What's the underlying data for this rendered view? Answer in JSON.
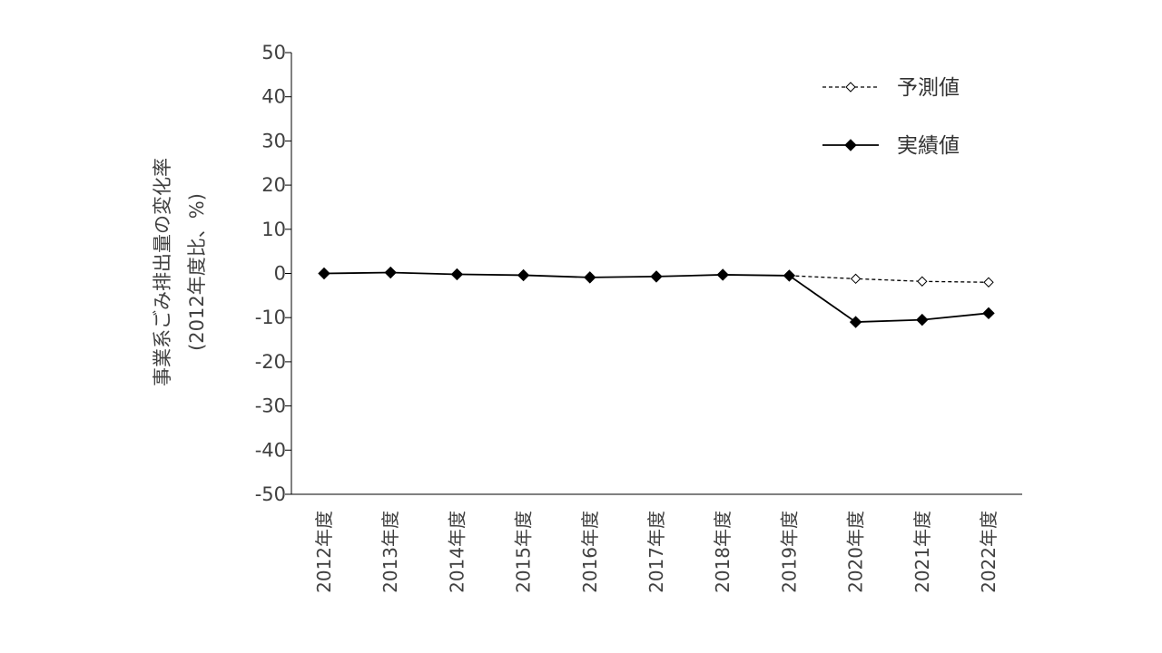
{
  "chart_data": {
    "type": "line",
    "categories": [
      "2012年度",
      "2013年度",
      "2014年度",
      "2015年度",
      "2016年度",
      "2017年度",
      "2018年度",
      "2019年度",
      "2020年度",
      "2021年度",
      "2022年度"
    ],
    "series": [
      {
        "name": "予測値",
        "style": "dashed",
        "marker": "open-diamond",
        "values": [
          null,
          null,
          null,
          null,
          null,
          null,
          null,
          -0.5,
          -1.2,
          -1.8,
          -2.0
        ]
      },
      {
        "name": "実績値",
        "style": "solid",
        "marker": "filled-diamond",
        "values": [
          0.0,
          0.2,
          -0.2,
          -0.4,
          -0.9,
          -0.7,
          -0.3,
          -0.5,
          -11.0,
          -10.5,
          -9.0
        ]
      }
    ],
    "ylabel_line1": "事業系ごみ排出量の変化率",
    "ylabel_line2": "(2012年度比、%)",
    "ylim": [
      -50,
      50
    ],
    "yticks": [
      50,
      40,
      30,
      20,
      10,
      0,
      -10,
      -20,
      -30,
      -40,
      -50
    ],
    "grid": false,
    "legend_position": "top-right",
    "colors": {
      "line": "#000000",
      "text": "#404040"
    }
  }
}
